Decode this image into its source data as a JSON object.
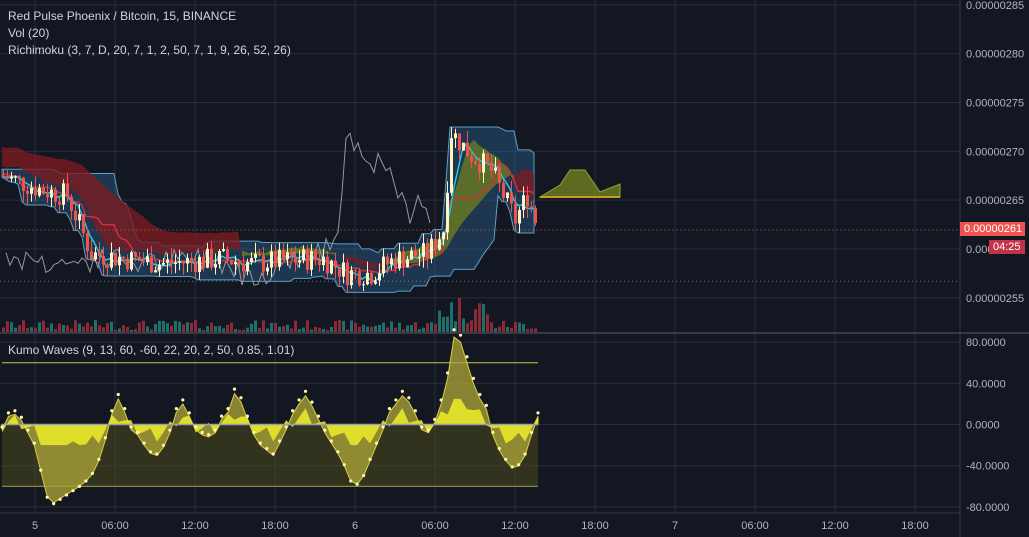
{
  "header": {
    "symbol_title": "Red Pulse Phoenix / Bitcoin, 15, BINANCE",
    "volume_indicator": "Vol (20)",
    "ichimoku_indicator": "Richimoku (3, 7, D, 20, 7, 1, 2, 50, 7, 1, 9, 26, 52, 26)",
    "oscillator_indicator": "Kumo Waves (9, 13, 60, -60, 22, 20, 2, 50, 0.85, 1.01)"
  },
  "price_tag": {
    "value": "0.00000261",
    "countdown": "04:25"
  },
  "colors": {
    "background": "#131722",
    "grid": "#2a2e39",
    "up_candle": "#fff2c4",
    "down_candle": "#ef5350",
    "price_tag": "#ef5350",
    "countdown_tag": "#c2324a",
    "channel_fill": "#2a5f8a",
    "kumo_red": "#7a1c22",
    "kumo_green": "#6a7a1f",
    "kumo_wave": "#e8e82a",
    "wave_zero": "#c0c050"
  },
  "chart_data": [
    {
      "type": "candlestick",
      "title": "Red Pulse Phoenix / Bitcoin, 15, BINANCE",
      "y_ticks": [
        "0.00000285",
        "0.00000280",
        "0.00000275",
        "0.00000270",
        "0.00000265",
        "0.00000260",
        "0.00000255"
      ],
      "ylim": [
        2.515e-06,
        2.855e-06
      ],
      "x_ticks": [
        "5",
        "06:00",
        "12:00",
        "18:00",
        "6",
        "06:00",
        "12:00",
        "18:00",
        "7",
        "06:00",
        "12:00",
        "18:00"
      ],
      "last_price": 2.61e-06,
      "dotted_level": 2.567e-06
    },
    {
      "type": "line",
      "title": "Kumo Waves (9, 13, 60, -60, 22, 20, 2, 50, 0.85, 1.01)",
      "y_ticks": [
        "80.0000",
        "40.0000",
        "0.0000",
        "-40.0000",
        "-80.0000"
      ],
      "ylim": [
        -85,
        88
      ],
      "upper_level": 60,
      "lower_level": -60,
      "zero_level": 0,
      "wave": [
        -5,
        8,
        10,
        4,
        -8,
        -20,
        -45,
        -70,
        -76,
        -72,
        -68,
        -64,
        -60,
        -55,
        -48,
        -35,
        -15,
        10,
        25,
        12,
        -5,
        -10,
        -20,
        -28,
        -30,
        -22,
        -8,
        12,
        20,
        8,
        -5,
        -10,
        -12,
        -8,
        5,
        12,
        30,
        22,
        5,
        -10,
        -20,
        -25,
        -30,
        -18,
        -5,
        10,
        20,
        28,
        18,
        5,
        -8,
        -18,
        -28,
        -40,
        -55,
        -58,
        -50,
        -35,
        -20,
        -5,
        12,
        20,
        28,
        22,
        10,
        -5,
        -8,
        2,
        20,
        45,
        85,
        80,
        60,
        40,
        25,
        15,
        -10,
        -25,
        -35,
        -42,
        -40,
        -30,
        -10,
        8
      ]
    }
  ]
}
